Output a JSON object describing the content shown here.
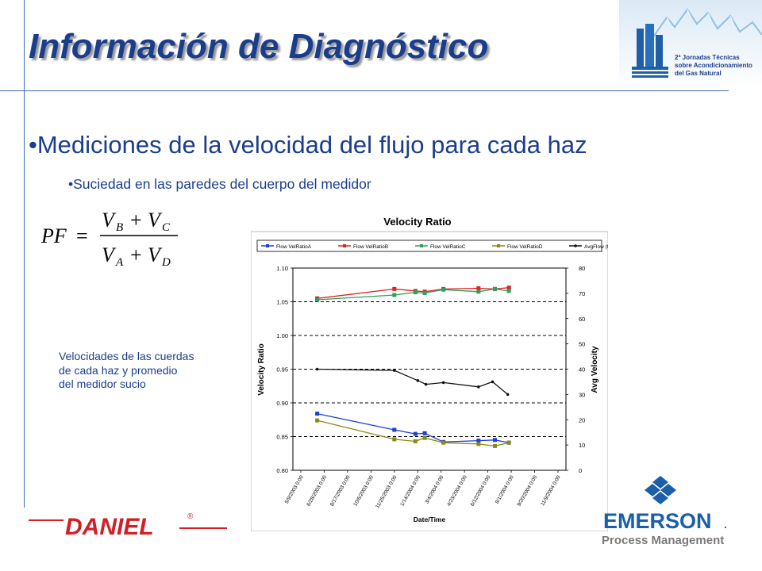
{
  "slide": {
    "title": "Información de Diagnóstico",
    "bullet_main": "•Mediciones de la velocidad del flujo para cada haz",
    "bullet_sub": "•Suciedad en las paredes del cuerpo del medidor",
    "note_lines": [
      "Velocidades de las cuerdas",
      "de cada haz y promedio",
      "del medidor sucio"
    ]
  },
  "formula": {
    "lhs": "PF",
    "eq": "=",
    "num_a": "V",
    "num_a_sub": "B",
    "plus1": "+",
    "num_b": "V",
    "num_b_sub": "C",
    "den_a": "V",
    "den_a_sub": "A",
    "plus2": "+",
    "den_b": "V",
    "den_b_sub": "D"
  },
  "logos": {
    "conference_lines": [
      "2ª Jornadas Técnicas",
      "sobre Acondicionamiento",
      "del Gas Natural"
    ],
    "daniel": "DANIEL",
    "daniel_mark": "®",
    "emerson": "EMERSON",
    "emerson_tm": ".",
    "emerson_sub": "Process Management"
  },
  "chart_data": {
    "type": "line",
    "title": "Velocity Ratio",
    "xlabel": "Date/Time",
    "ylabel": "Velocity Ratio",
    "ylabel_right": "Avg Velocity",
    "ylim": [
      0.8,
      1.1
    ],
    "ylim_right": [
      0,
      80
    ],
    "yticks": [
      "0.80",
      "0.85",
      "0.90",
      "0.95",
      "1.00",
      "1.05",
      "1.10"
    ],
    "yticks_right": [
      "0",
      "10",
      "20",
      "30",
      "40",
      "50",
      "60",
      "70",
      "80"
    ],
    "x_ticks": [
      "5/9/2003 0:00",
      "6/28/2003 0:00",
      "8/17/2003 0:00",
      "10/6/2003 0:00",
      "11/25/2003 0:00",
      "1/14/2004 0:00",
      "3/4/2004 0:00",
      "4/23/2004 0:00",
      "6/12/2004 0:00",
      "8/1/2004 0:00",
      "9/20/2004 0:00",
      "11/9/2004 0:00"
    ],
    "x_index": [
      0.7,
      4.0,
      4.9,
      5.3,
      6.1,
      7.6,
      8.3,
      8.9
    ],
    "grid": "dashed horizontal at 0.85, 0.90, 0.95, 1.00, 1.05",
    "legend": "top",
    "series": [
      {
        "name": "Flow VelRatioA",
        "axis": "left",
        "color": "#1f3fd6",
        "marker": "square",
        "values": [
          0.884,
          0.86,
          0.854,
          0.855,
          0.842,
          0.844,
          0.845,
          0.841
        ]
      },
      {
        "name": "Flow VelRatioB",
        "axis": "left",
        "color": "#e02020",
        "marker": "square",
        "values": [
          1.055,
          1.069,
          1.066,
          1.065,
          1.069,
          1.07,
          1.069,
          1.071
        ]
      },
      {
        "name": "Flow VelRatioC",
        "axis": "left",
        "color": "#2f9e5f",
        "marker": "square",
        "values": [
          1.053,
          1.06,
          1.064,
          1.063,
          1.068,
          1.065,
          1.069,
          1.066
        ]
      },
      {
        "name": "Flow VelRatioD",
        "axis": "left",
        "color": "#8a8a14",
        "marker": "square",
        "values": [
          0.874,
          0.846,
          0.843,
          0.848,
          0.841,
          0.839,
          0.836,
          0.841
        ]
      },
      {
        "name": "AvgFlow  (ft/s)",
        "axis": "right",
        "color": "#111111",
        "marker": "dot",
        "x_index": [
          0.7,
          4.0,
          5.0,
          5.35,
          6.1,
          7.6,
          8.2,
          8.85
        ],
        "values": [
          40,
          39.5,
          35.5,
          34,
          34.7,
          33,
          35,
          30
        ]
      }
    ]
  }
}
